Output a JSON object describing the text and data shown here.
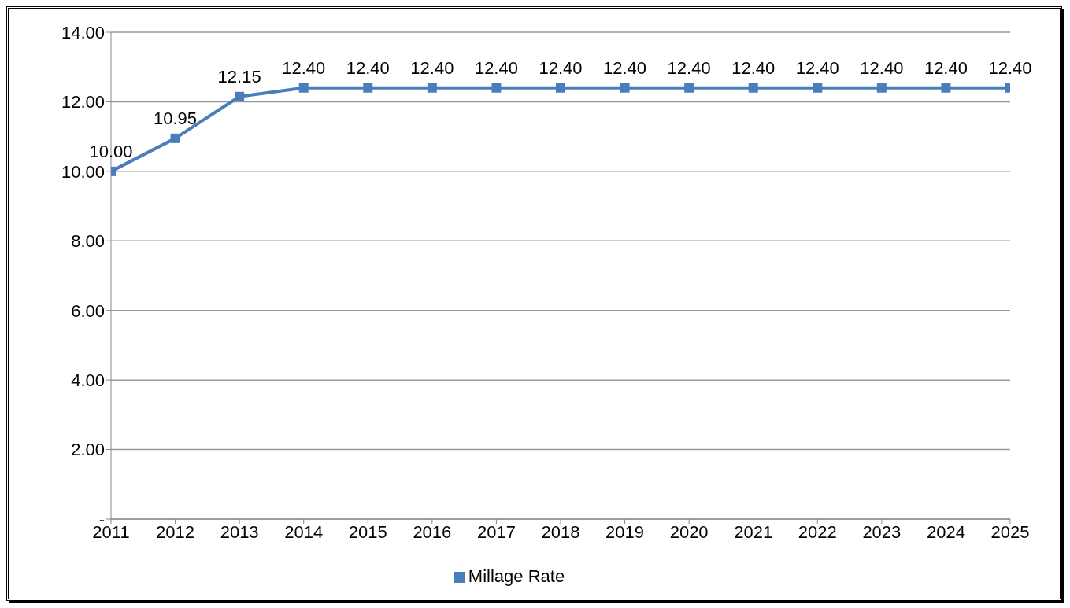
{
  "chart_data": {
    "type": "line",
    "categories": [
      "2011",
      "2012",
      "2013",
      "2014",
      "2015",
      "2016",
      "2017",
      "2018",
      "2019",
      "2020",
      "2021",
      "2022",
      "2023",
      "2024",
      "2025"
    ],
    "series": [
      {
        "name": "Millage Rate",
        "color": "#4a7ebb",
        "values": [
          10,
          10.95,
          12.15,
          12.4,
          12.4,
          12.4,
          12.4,
          12.4,
          12.4,
          12.4,
          12.4,
          12.4,
          12.4,
          12.4,
          12.4
        ],
        "value_labels": [
          "10.00",
          "10.95",
          "12.15",
          "12.40",
          "12.40",
          "12.40",
          "12.40",
          "12.40",
          "12.40",
          "12.40",
          "12.40",
          "12.40",
          "12.40",
          "12.40",
          "12.40"
        ]
      }
    ],
    "ylim": [
      0,
      14
    ],
    "yticks": [
      {
        "value": 0,
        "label": "-"
      },
      {
        "value": 2,
        "label": "2.00"
      },
      {
        "value": 4,
        "label": "4.00"
      },
      {
        "value": 6,
        "label": "6.00"
      },
      {
        "value": 8,
        "label": "8.00"
      },
      {
        "value": 10,
        "label": "10.00"
      },
      {
        "value": 12,
        "label": "12.00"
      },
      {
        "value": 14,
        "label": "14.00"
      }
    ],
    "grid": "y",
    "legend": "bottom",
    "marker": "square",
    "line_style": "solid"
  }
}
